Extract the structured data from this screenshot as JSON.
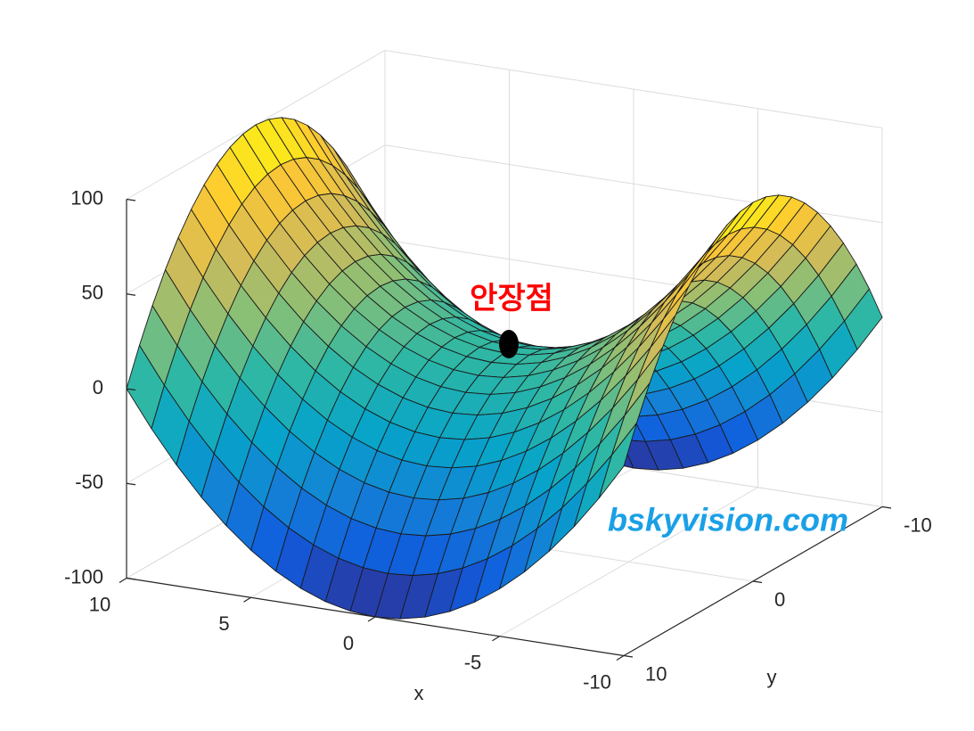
{
  "chart_data": {
    "type": "surface",
    "x": [
      -10,
      -9,
      -8,
      -7,
      -6,
      -5,
      -4,
      -3,
      -2,
      -1,
      0,
      1,
      2,
      3,
      4,
      5,
      6,
      7,
      8,
      9,
      10
    ],
    "y": [
      -10,
      -9,
      -8,
      -7,
      -6,
      -5,
      -4,
      -3,
      -2,
      -1,
      0,
      1,
      2,
      3,
      4,
      5,
      6,
      7,
      8,
      9,
      10
    ],
    "z": [
      [
        0,
        -19,
        -36,
        -51,
        -64,
        -75,
        -84,
        -91,
        -96,
        -99,
        -100,
        -99,
        -96,
        -91,
        -84,
        -75,
        -64,
        -51,
        -36,
        -19,
        0
      ],
      [
        19,
        0,
        -17,
        -32,
        -45,
        -56,
        -65,
        -72,
        -77,
        -80,
        -81,
        -80,
        -77,
        -72,
        -65,
        -56,
        -45,
        -32,
        -17,
        0,
        19
      ],
      [
        36,
        17,
        0,
        -15,
        -28,
        -39,
        -48,
        -55,
        -60,
        -63,
        -64,
        -63,
        -60,
        -55,
        -48,
        -39,
        -28,
        -15,
        0,
        17,
        36
      ],
      [
        51,
        32,
        15,
        0,
        -13,
        -24,
        -33,
        -40,
        -45,
        -48,
        -49,
        -48,
        -45,
        -40,
        -33,
        -24,
        -13,
        0,
        15,
        32,
        51
      ],
      [
        64,
        45,
        28,
        13,
        0,
        -11,
        -20,
        -27,
        -32,
        -35,
        -36,
        -35,
        -32,
        -27,
        -20,
        -11,
        0,
        13,
        28,
        45,
        64
      ],
      [
        75,
        56,
        39,
        24,
        11,
        0,
        -9,
        -16,
        -21,
        -24,
        -25,
        -24,
        -21,
        -16,
        -9,
        0,
        11,
        24,
        39,
        56,
        75
      ],
      [
        84,
        65,
        48,
        33,
        20,
        9,
        0,
        -7,
        -12,
        -15,
        -16,
        -15,
        -12,
        -7,
        0,
        9,
        20,
        33,
        48,
        65,
        84
      ],
      [
        91,
        72,
        55,
        40,
        27,
        16,
        7,
        0,
        -5,
        -8,
        -9,
        -8,
        -5,
        0,
        7,
        16,
        27,
        40,
        55,
        72,
        91
      ],
      [
        96,
        77,
        60,
        45,
        32,
        21,
        12,
        5,
        0,
        -3,
        -4,
        -3,
        0,
        5,
        12,
        21,
        32,
        45,
        60,
        77,
        96
      ],
      [
        99,
        80,
        63,
        48,
        35,
        24,
        15,
        8,
        3,
        0,
        -1,
        0,
        3,
        8,
        15,
        24,
        35,
        48,
        63,
        80,
        99
      ],
      [
        100,
        81,
        64,
        49,
        36,
        25,
        16,
        9,
        4,
        1,
        0,
        1,
        4,
        9,
        16,
        25,
        36,
        49,
        64,
        81,
        100
      ],
      [
        99,
        80,
        63,
        48,
        35,
        24,
        15,
        8,
        3,
        0,
        -1,
        0,
        3,
        8,
        15,
        24,
        35,
        48,
        63,
        80,
        99
      ],
      [
        96,
        77,
        60,
        45,
        32,
        21,
        12,
        5,
        0,
        -3,
        -4,
        -3,
        0,
        5,
        12,
        21,
        32,
        45,
        60,
        77,
        96
      ],
      [
        91,
        72,
        55,
        40,
        27,
        16,
        7,
        0,
        -5,
        -8,
        -9,
        -8,
        -5,
        0,
        7,
        16,
        27,
        40,
        55,
        72,
        91
      ],
      [
        84,
        65,
        48,
        33,
        20,
        9,
        0,
        -7,
        -12,
        -15,
        -16,
        -15,
        -12,
        -7,
        0,
        9,
        20,
        33,
        48,
        65,
        84
      ],
      [
        75,
        56,
        39,
        24,
        11,
        0,
        -9,
        -16,
        -21,
        -24,
        -25,
        -24,
        -21,
        -16,
        -9,
        0,
        11,
        24,
        39,
        56,
        75
      ],
      [
        64,
        45,
        28,
        13,
        0,
        -11,
        -20,
        -27,
        -32,
        -35,
        -36,
        -35,
        -32,
        -27,
        -20,
        -11,
        0,
        13,
        28,
        45,
        64
      ],
      [
        51,
        32,
        15,
        0,
        -13,
        -24,
        -33,
        -40,
        -45,
        -48,
        -49,
        -48,
        -45,
        -40,
        -33,
        -24,
        -13,
        0,
        15,
        32,
        51
      ],
      [
        36,
        17,
        0,
        -15,
        -28,
        -39,
        -48,
        -55,
        -60,
        -63,
        -64,
        -63,
        -60,
        -55,
        -48,
        -39,
        -28,
        -15,
        0,
        17,
        36
      ],
      [
        19,
        0,
        -17,
        -32,
        -45,
        -56,
        -65,
        -72,
        -77,
        -80,
        -81,
        -80,
        -77,
        -72,
        -65,
        -56,
        -45,
        -32,
        -17,
        0,
        19
      ],
      [
        0,
        -19,
        -36,
        -51,
        -64,
        -75,
        -84,
        -91,
        -96,
        -99,
        -100,
        -99,
        -96,
        -91,
        -84,
        -75,
        -64,
        -51,
        -36,
        -19,
        0
      ]
    ],
    "xlim": [
      -10,
      10
    ],
    "ylim": [
      -10,
      10
    ],
    "zlim": [
      -100,
      100
    ],
    "xticks": [
      -10,
      -5,
      0,
      5,
      10
    ],
    "yticks": [
      -10,
      0,
      10
    ],
    "zticks": [
      -100,
      -50,
      0,
      50,
      100
    ],
    "xlabel": "x",
    "ylabel": "y",
    "grid": true,
    "colormap": [
      "#352a87",
      "#0f5cdd",
      "#1481d6",
      "#06a4ca",
      "#2eb7a4",
      "#87bf77",
      "#d1bb59",
      "#fec832",
      "#f9fb0e"
    ],
    "edge_color": "#1a1a1a",
    "annotation": {
      "text": "안장점",
      "x": 0,
      "y": 0,
      "z": 0,
      "color": "#ff0000"
    },
    "watermark": {
      "text": "bskyvision.com",
      "color": "#1aa0e6"
    }
  }
}
